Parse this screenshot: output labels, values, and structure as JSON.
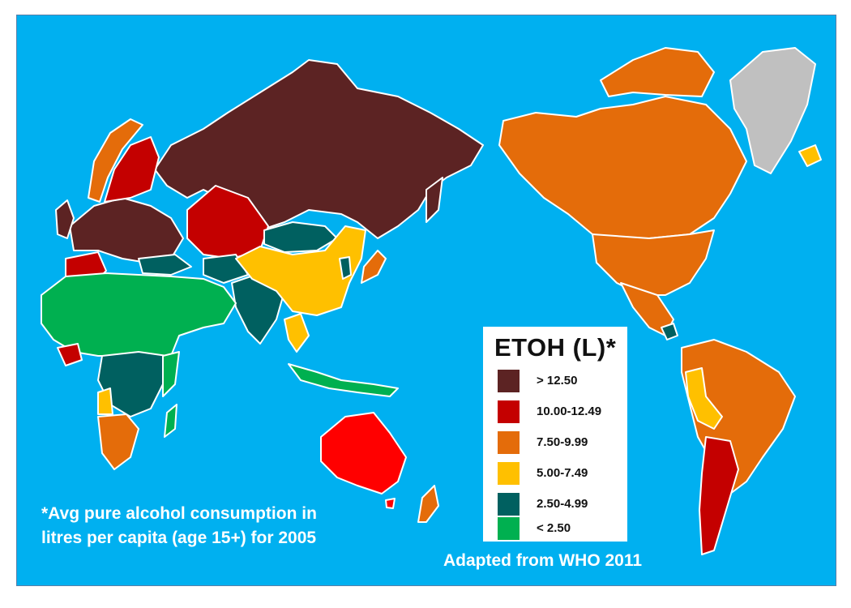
{
  "legend": {
    "title": "ETOH (L)*",
    "items": [
      {
        "label": "> 12.50",
        "color": "#5c2323"
      },
      {
        "label": "10.00-12.49",
        "color": "#c40000"
      },
      {
        "label": "7.50-9.99",
        "color": "#e46c0a"
      },
      {
        "label": "5.00-7.49",
        "color": "#ffc000"
      },
      {
        "label": "2.50-4.99",
        "color": "#006060"
      },
      {
        "label": "< 2.50",
        "color": "#00b050"
      }
    ]
  },
  "footnote": {
    "line1": "*Avg pure alcohol consumption in",
    "line2": "litres per capita (age 15+) for 2005"
  },
  "credit": "Adapted from WHO 2011",
  "colors": {
    "ocean": "#00b0f0",
    "no_data": "#c0c0c0",
    "border": "#ffffff"
  }
}
